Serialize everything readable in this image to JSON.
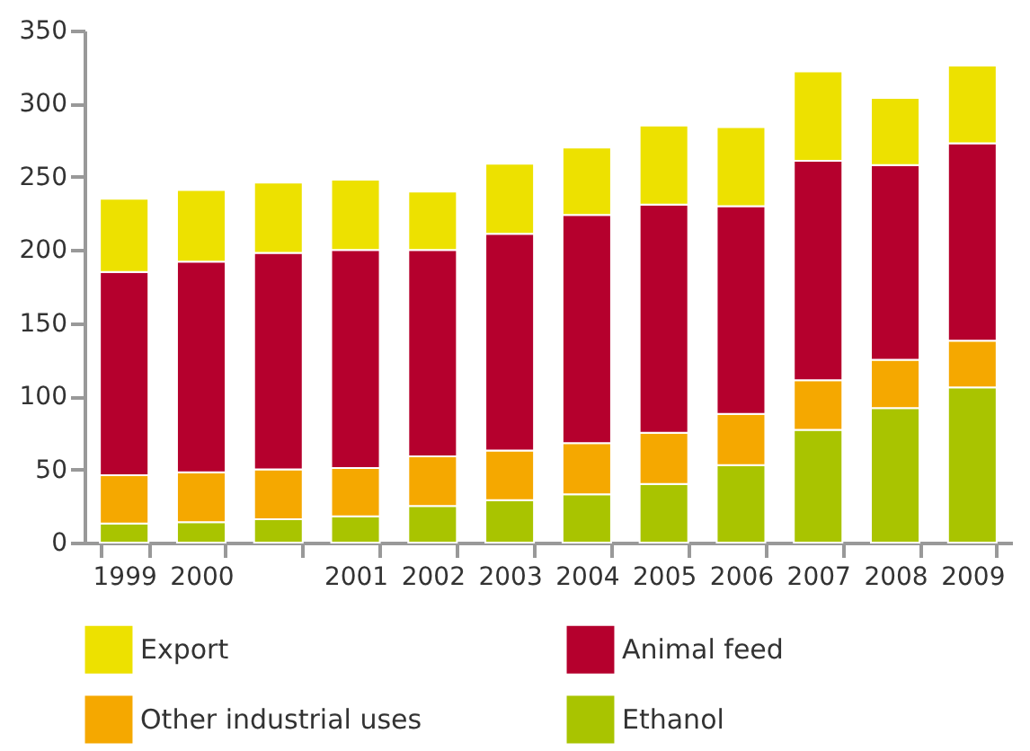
{
  "chart_data": {
    "type": "bar",
    "stacked": true,
    "categories": [
      "1999",
      "2000",
      null,
      "2001",
      "2002",
      "2003",
      "2004",
      "2005",
      "2006",
      "2007",
      "2008",
      "2009"
    ],
    "series": [
      {
        "name": "Ethanol",
        "color": "#a9c400",
        "values": [
          13,
          14,
          16,
          18,
          25,
          29,
          33,
          40,
          53,
          77,
          92,
          106
        ]
      },
      {
        "name": "Other industrial uses",
        "color": "#f5a800",
        "values": [
          33,
          34,
          34,
          33,
          34,
          34,
          35,
          35,
          35,
          34,
          33,
          32
        ]
      },
      {
        "name": "Animal feed",
        "color": "#b5002d",
        "values": [
          139,
          144,
          148,
          149,
          141,
          148,
          156,
          156,
          142,
          150,
          133,
          135
        ]
      },
      {
        "name": "Export",
        "color": "#ede100",
        "values": [
          50,
          49,
          48,
          48,
          40,
          48,
          46,
          54,
          54,
          61,
          46,
          53
        ]
      }
    ],
    "ylim": [
      0,
      350
    ],
    "yticks": [
      0,
      50,
      100,
      150,
      200,
      250,
      300,
      350
    ],
    "legend": "bottom"
  }
}
